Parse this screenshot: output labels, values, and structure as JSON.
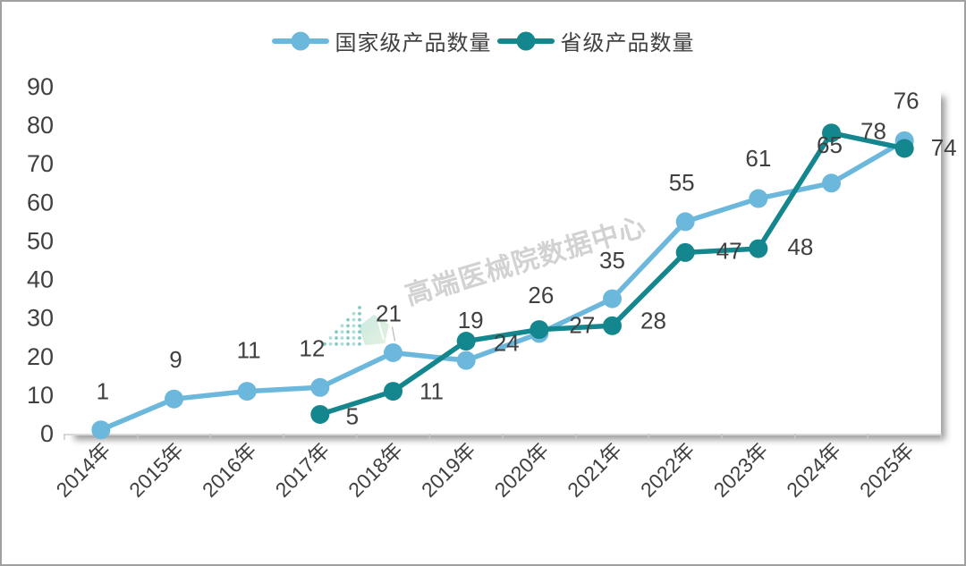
{
  "watermark": {
    "text": "高端医械院数据中心"
  },
  "chart_data": {
    "type": "line",
    "title": "",
    "xlabel": "",
    "ylabel": "",
    "categories": [
      "2014年",
      "2015年",
      "2016年",
      "2017年",
      "2018年",
      "2019年",
      "2020年",
      "2021年",
      "2022年",
      "2023年",
      "2024年",
      "2025年"
    ],
    "series": [
      {
        "name": "国家级产品数量",
        "color": "#6CB8DC",
        "values": [
          1,
          9,
          11,
          12,
          21,
          19,
          26,
          35,
          55,
          61,
          65,
          76
        ]
      },
      {
        "name": "省级产品数量",
        "color": "#14868D",
        "values": [
          null,
          null,
          null,
          5,
          11,
          24,
          27,
          28,
          47,
          48,
          78,
          74
        ]
      }
    ],
    "ylim": [
      0,
      90
    ],
    "ytick_step": 10,
    "grid": false,
    "legend_position": "top",
    "label_offsets": [
      [
        [
          2,
          -43
        ],
        [
          2,
          -44
        ],
        [
          2,
          -46
        ],
        [
          -9,
          -44
        ],
        [
          -5,
          -44
        ],
        [
          5,
          -45
        ],
        [
          2,
          -43
        ],
        [
          0,
          -43
        ],
        [
          -4,
          -44
        ],
        [
          0,
          -45
        ],
        [
          -2,
          -43
        ],
        [
          2,
          -45
        ]
      ],
      [
        null,
        null,
        null,
        [
          36,
          2
        ],
        [
          43,
          0
        ],
        [
          45,
          2
        ],
        [
          48,
          -5
        ],
        [
          46,
          -6
        ],
        [
          49,
          -2
        ],
        [
          47,
          -2
        ],
        [
          47,
          -2
        ],
        [
          44,
          -1
        ]
      ]
    ],
    "leader_lines": [
      [
        0,
        4
      ]
    ]
  },
  "axis_colors": {
    "tick": "#C8C8C8",
    "label": "#404040"
  }
}
